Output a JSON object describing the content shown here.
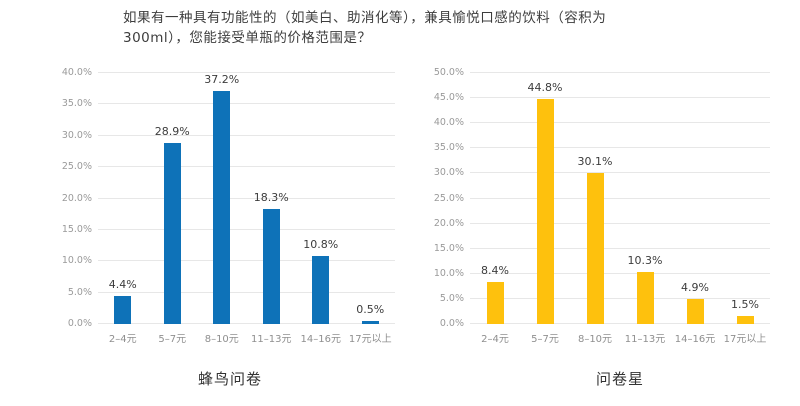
{
  "page": {
    "title_line1": "如果有一种具有功能性的（如美白、助消化等），兼具愉悦口感的饮料（容积为",
    "title_line2": "300ml），您能接受单瓶的价格范围是？"
  },
  "chart_data": [
    {
      "type": "bar",
      "title": "蜂鸟问卷",
      "categories": [
        "2–4元",
        "5–7元",
        "8–10元",
        "11–13元",
        "14–16元",
        "17元以上"
      ],
      "values": [
        4.4,
        28.9,
        37.2,
        18.3,
        10.8,
        0.5
      ],
      "value_labels": [
        "4.4%",
        "28.9%",
        "37.2%",
        "18.3%",
        "10.8%",
        "0.5%"
      ],
      "bar_color": "#0e72b8",
      "xlabel": "",
      "ylabel": "",
      "ylim": [
        0,
        40
      ],
      "ytick_step": 5,
      "ytick_labels": [
        "0.0%",
        "5.0%",
        "10.0%",
        "15.0%",
        "20.0%",
        "25.0%",
        "30.0%",
        "35.0%",
        "40.0%"
      ],
      "grid": true,
      "legend": false
    },
    {
      "type": "bar",
      "title": "问卷星",
      "categories": [
        "2–4元",
        "5–7元",
        "8–10元",
        "11–13元",
        "14–16元",
        "17元以上"
      ],
      "values": [
        8.4,
        44.8,
        30.1,
        10.3,
        4.9,
        1.5
      ],
      "value_labels": [
        "8.4%",
        "44.8%",
        "30.1%",
        "10.3%",
        "4.9%",
        "1.5%"
      ],
      "bar_color": "#fec10d",
      "xlabel": "",
      "ylabel": "",
      "ylim": [
        0,
        50
      ],
      "ytick_step": 5,
      "ytick_labels": [
        "0.0%",
        "5.0%",
        "10.0%",
        "15.0%",
        "20.0%",
        "25.0%",
        "30.0%",
        "35.0%",
        "40.0%",
        "45.0%",
        "50.0%"
      ],
      "grid": true,
      "legend": false
    }
  ]
}
